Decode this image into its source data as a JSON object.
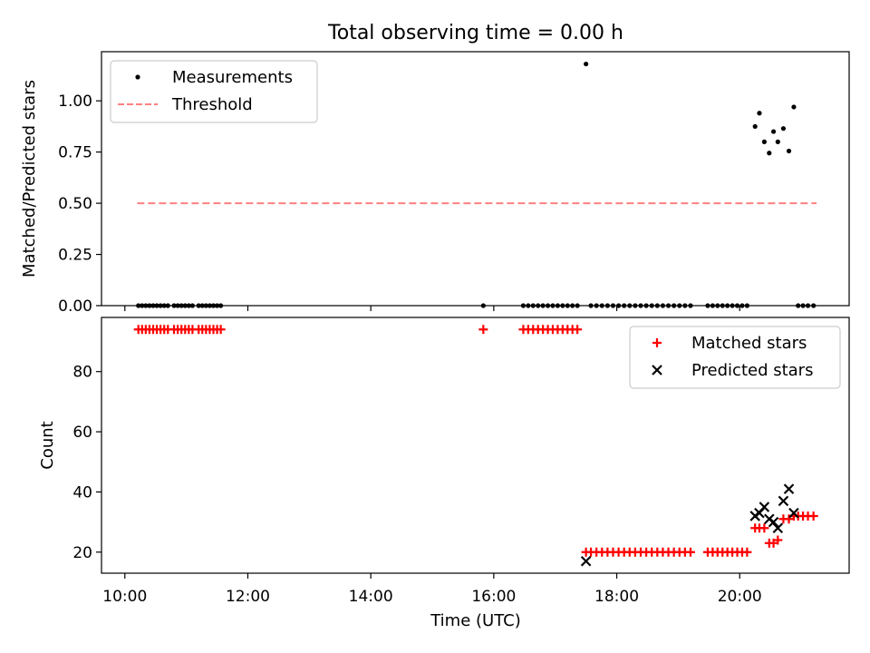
{
  "chart_data": {
    "type": "scatter",
    "title": "Total observing time = 0.00 h",
    "xlabel": "Time (UTC)",
    "x_tick_labels": [
      "10:00",
      "12:00",
      "14:00",
      "16:00",
      "18:00",
      "20:00"
    ],
    "x_ticks_hours": [
      10,
      12,
      14,
      16,
      18,
      20
    ],
    "xlim_hours": [
      9.62,
      21.78
    ],
    "panels": [
      {
        "ylabel": "Matched/Predicted stars",
        "ylim": [
          0,
          1.24
        ],
        "y_ticks": [
          0.0,
          0.25,
          0.5,
          0.75,
          1.0
        ],
        "y_tick_labels": [
          "0.00",
          "0.25",
          "0.50",
          "0.75",
          "1.00"
        ],
        "legend_position": "upper-left",
        "series": [
          {
            "name": "Measurements",
            "marker": "dot",
            "color": "#000000",
            "points": [
              [
                10.22,
                0
              ],
              [
                10.28,
                0
              ],
              [
                10.34,
                0
              ],
              [
                10.4,
                0
              ],
              [
                10.46,
                0
              ],
              [
                10.52,
                0
              ],
              [
                10.58,
                0
              ],
              [
                10.64,
                0
              ],
              [
                10.7,
                0
              ],
              [
                10.8,
                0
              ],
              [
                10.86,
                0
              ],
              [
                10.92,
                0
              ],
              [
                10.98,
                0
              ],
              [
                11.04,
                0
              ],
              [
                11.1,
                0
              ],
              [
                11.2,
                0
              ],
              [
                11.26,
                0
              ],
              [
                11.32,
                0
              ],
              [
                11.38,
                0
              ],
              [
                11.44,
                0
              ],
              [
                11.5,
                0
              ],
              [
                11.56,
                0
              ],
              [
                15.83,
                0
              ],
              [
                16.48,
                0
              ],
              [
                16.56,
                0
              ],
              [
                16.64,
                0
              ],
              [
                16.72,
                0
              ],
              [
                16.8,
                0
              ],
              [
                16.88,
                0
              ],
              [
                16.96,
                0
              ],
              [
                17.04,
                0
              ],
              [
                17.12,
                0
              ],
              [
                17.2,
                0
              ],
              [
                17.28,
                0
              ],
              [
                17.36,
                0
              ],
              [
                17.58,
                0
              ],
              [
                17.67,
                0
              ],
              [
                17.76,
                0
              ],
              [
                17.85,
                0
              ],
              [
                17.94,
                0
              ],
              [
                18.03,
                0
              ],
              [
                18.12,
                0
              ],
              [
                18.21,
                0
              ],
              [
                18.3,
                0
              ],
              [
                18.39,
                0
              ],
              [
                18.48,
                0
              ],
              [
                18.57,
                0
              ],
              [
                18.66,
                0
              ],
              [
                18.75,
                0
              ],
              [
                18.84,
                0
              ],
              [
                18.93,
                0
              ],
              [
                19.02,
                0
              ],
              [
                19.11,
                0
              ],
              [
                19.2,
                0
              ],
              [
                19.48,
                0
              ],
              [
                19.56,
                0
              ],
              [
                19.64,
                0
              ],
              [
                19.72,
                0
              ],
              [
                19.8,
                0
              ],
              [
                19.88,
                0
              ],
              [
                19.96,
                0
              ],
              [
                20.04,
                0
              ],
              [
                20.12,
                0
              ],
              [
                20.95,
                0
              ],
              [
                21.03,
                0
              ],
              [
                21.11,
                0
              ],
              [
                21.2,
                0
              ],
              [
                17.5,
                1.18
              ],
              [
                20.25,
                0.875
              ],
              [
                20.32,
                0.94
              ],
              [
                20.4,
                0.8
              ],
              [
                20.48,
                0.745
              ],
              [
                20.55,
                0.85
              ],
              [
                20.62,
                0.8
              ],
              [
                20.71,
                0.865
              ],
              [
                20.8,
                0.755
              ],
              [
                20.88,
                0.97
              ]
            ]
          },
          {
            "name": "Threshold",
            "marker": "dashed-line",
            "color": "#ff8080",
            "points": [
              [
                10.2,
                0.5
              ],
              [
                21.25,
                0.5
              ]
            ]
          }
        ]
      },
      {
        "ylabel": "Count",
        "ylim": [
          13,
          98
        ],
        "y_ticks": [
          20,
          40,
          60,
          80
        ],
        "y_tick_labels": [
          "20",
          "40",
          "60",
          "80"
        ],
        "legend_position": "upper-right",
        "series": [
          {
            "name": "Matched stars",
            "marker": "plus",
            "color": "#ff0000",
            "points": [
              [
                10.22,
                94
              ],
              [
                10.28,
                94
              ],
              [
                10.34,
                94
              ],
              [
                10.4,
                94
              ],
              [
                10.46,
                94
              ],
              [
                10.52,
                94
              ],
              [
                10.58,
                94
              ],
              [
                10.64,
                94
              ],
              [
                10.7,
                94
              ],
              [
                10.8,
                94
              ],
              [
                10.86,
                94
              ],
              [
                10.92,
                94
              ],
              [
                10.98,
                94
              ],
              [
                11.04,
                94
              ],
              [
                11.1,
                94
              ],
              [
                11.2,
                94
              ],
              [
                11.26,
                94
              ],
              [
                11.32,
                94
              ],
              [
                11.38,
                94
              ],
              [
                11.44,
                94
              ],
              [
                11.5,
                94
              ],
              [
                11.56,
                94
              ],
              [
                15.83,
                94
              ],
              [
                16.48,
                94
              ],
              [
                16.56,
                94
              ],
              [
                16.64,
                94
              ],
              [
                16.72,
                94
              ],
              [
                16.8,
                94
              ],
              [
                16.88,
                94
              ],
              [
                16.96,
                94
              ],
              [
                17.04,
                94
              ],
              [
                17.12,
                94
              ],
              [
                17.2,
                94
              ],
              [
                17.28,
                94
              ],
              [
                17.36,
                94
              ],
              [
                17.5,
                20
              ],
              [
                17.58,
                20
              ],
              [
                17.67,
                20
              ],
              [
                17.76,
                20
              ],
              [
                17.85,
                20
              ],
              [
                17.94,
                20
              ],
              [
                18.03,
                20
              ],
              [
                18.12,
                20
              ],
              [
                18.21,
                20
              ],
              [
                18.3,
                20
              ],
              [
                18.39,
                20
              ],
              [
                18.48,
                20
              ],
              [
                18.57,
                20
              ],
              [
                18.66,
                20
              ],
              [
                18.75,
                20
              ],
              [
                18.84,
                20
              ],
              [
                18.93,
                20
              ],
              [
                19.02,
                20
              ],
              [
                19.11,
                20
              ],
              [
                19.2,
                20
              ],
              [
                19.48,
                20
              ],
              [
                19.56,
                20
              ],
              [
                19.64,
                20
              ],
              [
                19.72,
                20
              ],
              [
                19.8,
                20
              ],
              [
                19.88,
                20
              ],
              [
                19.96,
                20
              ],
              [
                20.04,
                20
              ],
              [
                20.12,
                20
              ],
              [
                20.25,
                28
              ],
              [
                20.32,
                28
              ],
              [
                20.4,
                28
              ],
              [
                20.48,
                23
              ],
              [
                20.55,
                23
              ],
              [
                20.62,
                24
              ],
              [
                20.71,
                31
              ],
              [
                20.8,
                31
              ],
              [
                20.88,
                32
              ],
              [
                20.95,
                32
              ],
              [
                21.03,
                32
              ],
              [
                21.11,
                32
              ],
              [
                21.2,
                32
              ]
            ]
          },
          {
            "name": "Predicted stars",
            "marker": "x",
            "color": "#000000",
            "points": [
              [
                17.5,
                17
              ],
              [
                20.25,
                32
              ],
              [
                20.32,
                33
              ],
              [
                20.4,
                35
              ],
              [
                20.48,
                31
              ],
              [
                20.55,
                30
              ],
              [
                20.62,
                28
              ],
              [
                20.71,
                37
              ],
              [
                20.8,
                41
              ],
              [
                20.88,
                33
              ]
            ]
          }
        ]
      }
    ]
  }
}
